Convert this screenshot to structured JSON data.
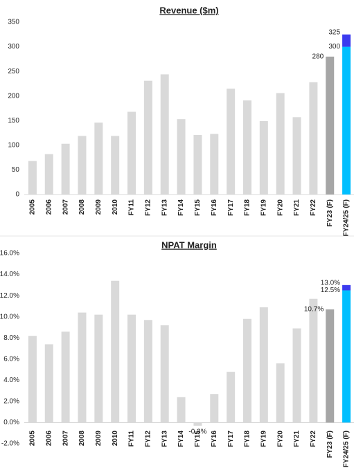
{
  "chart_data": [
    {
      "type": "bar",
      "title": "Revenue ($m)",
      "categories": [
        "2005",
        "2006",
        "2007",
        "2008",
        "2009",
        "2010",
        "FY11",
        "FY12",
        "FY13",
        "FY14",
        "FY15",
        "FY16",
        "FY17",
        "FY18",
        "FY19",
        "FY20",
        "FY21",
        "FY22",
        "FY23 (F)",
        "FY24/25 (F)"
      ],
      "series": [
        {
          "colors": [
            "#d9d9d9",
            "#d9d9d9",
            "#d9d9d9",
            "#d9d9d9",
            "#d9d9d9",
            "#d9d9d9",
            "#d9d9d9",
            "#d9d9d9",
            "#d9d9d9",
            "#d9d9d9",
            "#d9d9d9",
            "#d9d9d9",
            "#d9d9d9",
            "#d9d9d9",
            "#d9d9d9",
            "#d9d9d9",
            "#d9d9d9",
            "#d9d9d9",
            "#a6a6a6",
            "#00bfff"
          ],
          "values": [
            68,
            82,
            103,
            119,
            146,
            119,
            168,
            231,
            244,
            153,
            121,
            123,
            215,
            191,
            149,
            206,
            157,
            228,
            280,
            300
          ],
          "value_labels": [
            null,
            null,
            null,
            null,
            null,
            null,
            null,
            null,
            null,
            null,
            null,
            null,
            null,
            null,
            null,
            null,
            null,
            null,
            "280",
            "300"
          ]
        },
        {
          "color": "#3b3bef",
          "values": [
            null,
            null,
            null,
            null,
            null,
            null,
            null,
            null,
            null,
            null,
            null,
            null,
            null,
            null,
            null,
            null,
            null,
            null,
            null,
            25
          ]
        }
      ],
      "annotations": [
        "325"
      ],
      "ylim": [
        0,
        350
      ],
      "yticks": [
        0,
        50,
        100,
        150,
        200,
        250,
        300,
        350
      ],
      "grid": false
    },
    {
      "type": "bar",
      "title": "NPAT Margin",
      "categories": [
        "2005",
        "2006",
        "2007",
        "2008",
        "2009",
        "2010",
        "FY11",
        "FY12",
        "FY13",
        "FY14",
        "FY15",
        "FY16",
        "FY17",
        "FY18",
        "FY19",
        "FY20",
        "FY21",
        "FY22",
        "FY23 (F)",
        "FY24/25 (F)"
      ],
      "series": [
        {
          "colors": [
            "#d9d9d9",
            "#d9d9d9",
            "#d9d9d9",
            "#d9d9d9",
            "#d9d9d9",
            "#d9d9d9",
            "#d9d9d9",
            "#d9d9d9",
            "#d9d9d9",
            "#d9d9d9",
            "#d9d9d9",
            "#d9d9d9",
            "#d9d9d9",
            "#d9d9d9",
            "#d9d9d9",
            "#d9d9d9",
            "#d9d9d9",
            "#d9d9d9",
            "#a6a6a6",
            "#00bfff"
          ],
          "values": [
            8.2,
            7.4,
            8.6,
            10.4,
            10.2,
            13.4,
            10.2,
            9.7,
            9.2,
            2.4,
            -0.3,
            2.7,
            4.8,
            9.8,
            10.9,
            5.6,
            8.9,
            11.7,
            10.7,
            12.5
          ],
          "value_labels": [
            null,
            null,
            null,
            null,
            null,
            null,
            null,
            null,
            null,
            null,
            "-0.3%",
            null,
            null,
            null,
            null,
            null,
            null,
            null,
            "10.7%",
            "12.5%"
          ]
        },
        {
          "color": "#3b3bef",
          "values": [
            null,
            null,
            null,
            null,
            null,
            null,
            null,
            null,
            null,
            null,
            null,
            null,
            null,
            null,
            null,
            null,
            null,
            null,
            null,
            0.5
          ]
        }
      ],
      "annotations": [
        "13.0%"
      ],
      "ylim": [
        -2,
        16
      ],
      "yticks": [
        {
          "value": -2,
          "label": "-2.0%"
        },
        {
          "value": 0,
          "label": "0.0%"
        },
        {
          "value": 2,
          "label": "2.0%"
        },
        {
          "value": 4,
          "label": "4.0%"
        },
        {
          "value": 6,
          "label": "6.0%"
        },
        {
          "value": 8,
          "label": "8.0%"
        },
        {
          "value": 10,
          "label": "10.0%"
        },
        {
          "value": 12,
          "label": "12.0%"
        },
        {
          "value": 14,
          "label": "14.0%"
        },
        {
          "value": 16,
          "label": "16.0%"
        }
      ],
      "grid": false
    }
  ]
}
